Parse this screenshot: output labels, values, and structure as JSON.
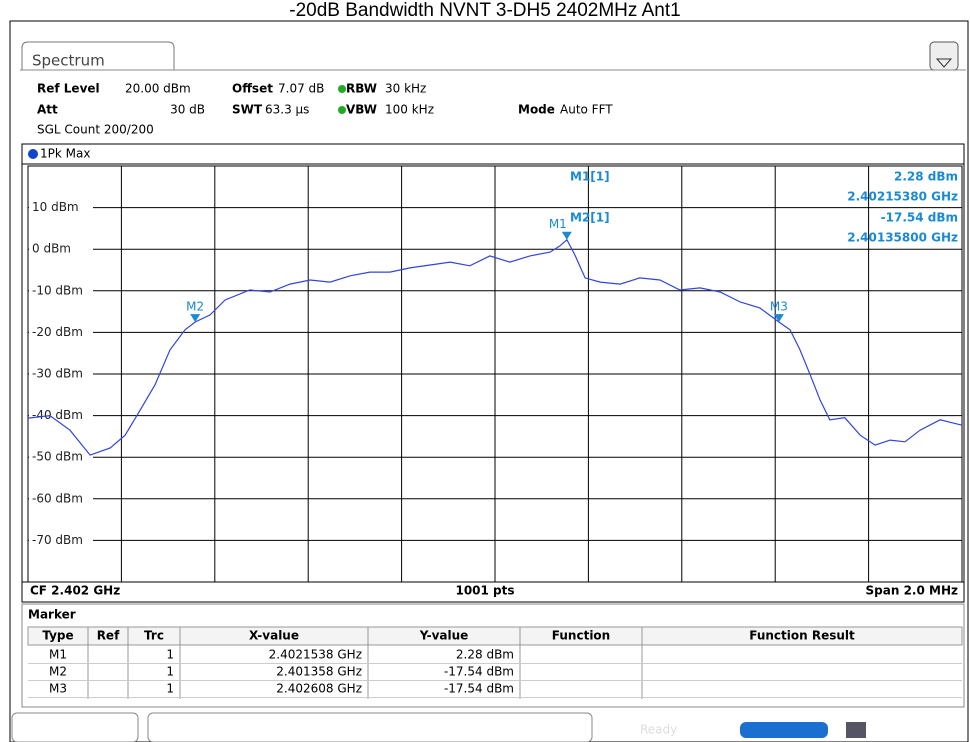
{
  "title": "-20dB Bandwidth NVNT 3-DH5 2402MHz Ant1",
  "tab": "Spectrum",
  "settings": [
    {
      "label": "Ref Level",
      "value": "20.00 dBm"
    },
    {
      "label": "Offset",
      "value": "7.07 dB"
    },
    {
      "label": "RBW",
      "value": "30 kHz"
    },
    {
      "label": "Att",
      "value": "30 dB"
    },
    {
      "label": "SWT",
      "value": "63.3 µs"
    },
    {
      "label": "VBW",
      "value": "100 kHz"
    },
    {
      "label": "Mode",
      "value": "Auto FFT"
    }
  ],
  "count": "SGL Count 200/200",
  "chart_data": {
    "type": "line",
    "xlim": [
      2401,
      2403
    ],
    "ylim": [
      -80,
      20
    ],
    "yticks": [
      {
        "value": 10,
        "label": "10 dBm"
      },
      {
        "value": 0,
        "label": "0 dBm"
      },
      {
        "value": -10,
        "label": "-10 dBm"
      },
      {
        "value": -20,
        "label": "-20 dBm"
      },
      {
        "value": -30,
        "label": "-30 dBm"
      },
      {
        "value": -40,
        "label": "-40 dBm"
      },
      {
        "value": -50,
        "label": "-50 dBm"
      },
      {
        "value": -60,
        "label": "-60 dBm"
      },
      {
        "value": -70,
        "label": "-70 dBm"
      }
    ],
    "grid": true,
    "x": [
      2401.0,
      2401.047,
      2401.09,
      2401.133,
      2401.176,
      2401.208,
      2401.24,
      2401.272,
      2401.304,
      2401.336,
      2401.358,
      2401.39,
      2401.422,
      2401.475,
      2401.518,
      2401.561,
      2401.604,
      2401.647,
      2401.69,
      2401.732,
      2401.775,
      2401.818,
      2401.861,
      2401.904,
      2401.946,
      2401.989,
      2402.032,
      2402.075,
      2402.118,
      2402.139,
      2402.154,
      2402.171,
      2402.193,
      2402.225,
      2402.268,
      2402.31,
      2402.353,
      2402.396,
      2402.439,
      2402.482,
      2402.525,
      2402.567,
      2402.608,
      2402.632,
      2402.653,
      2402.675,
      2402.696,
      2402.717,
      2402.749,
      2402.782,
      2402.814,
      2402.846,
      2402.878,
      2402.91,
      2402.953,
      2403.0
    ],
    "series": [
      {
        "name": "1Pk Max",
        "color": "#3344dd",
        "values": [
          -40.6,
          -40,
          -43.5,
          -49.5,
          -47.8,
          -44.7,
          -38.7,
          -32.6,
          -24.2,
          -19.4,
          -17.5,
          -15.8,
          -12.2,
          -9.8,
          -10.3,
          -8.4,
          -7.4,
          -7.9,
          -6.4,
          -5.5,
          -5.5,
          -4.5,
          -3.8,
          -3.1,
          -4,
          -1.6,
          -3.1,
          -1.6,
          -0.7,
          0.8,
          2.28,
          -1.4,
          -6.9,
          -7.9,
          -8.4,
          -6.9,
          -7.4,
          -9.8,
          -9.3,
          -10.3,
          -12.7,
          -14.1,
          -17.5,
          -19.4,
          -24.2,
          -30.2,
          -36.2,
          -41,
          -40.5,
          -44.7,
          -47.1,
          -45.9,
          -46.3,
          -43.5,
          -41,
          -42.3
        ]
      }
    ],
    "markers": [
      {
        "name": "M1",
        "x": 2402.1538,
        "value": 2.28
      },
      {
        "name": "M2",
        "x": 2401.358,
        "value": -17.54
      },
      {
        "name": "M3",
        "x": 2402.608,
        "value": -17.54
      }
    ]
  },
  "readout": [
    "M1[1]",
    "2.28 dBm",
    "2.40215380 GHz",
    "M2[1]",
    "-17.54 dBm",
    "2.40135800 GHz"
  ],
  "footer": {
    "cf": "CF 2.402 GHz",
    "points": "1001 pts",
    "span": "Span 2.0 MHz"
  },
  "marker_table": {
    "title": "Marker",
    "columns": [
      "Type",
      "Ref",
      "Trc",
      "X-value",
      "Y-value",
      "Function",
      "Function Result"
    ],
    "rows": [
      [
        "M1",
        "",
        "1",
        "2.4021538 GHz",
        "2.28 dBm",
        "",
        ""
      ],
      [
        "M2",
        "",
        "1",
        "2.401358 GHz",
        "-17.54 dBm",
        "",
        ""
      ],
      [
        "M3",
        "",
        "1",
        "2.402608 GHz",
        "-17.54 dBm",
        "",
        ""
      ]
    ]
  },
  "status": "Ready"
}
